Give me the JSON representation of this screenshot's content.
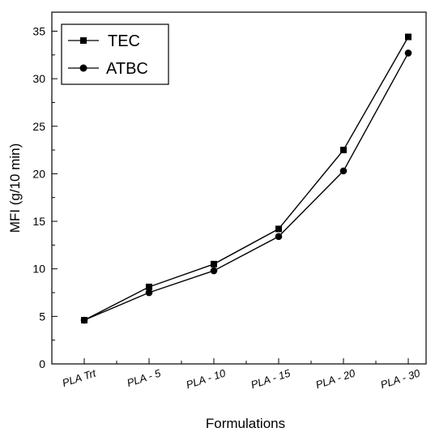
{
  "chart_data": {
    "type": "line",
    "title": "",
    "xlabel": "Formulations",
    "ylabel": "MFI (g/10 min)",
    "categories": [
      "PLA Trt",
      "PLA - 5",
      "PLA - 10",
      "PLA - 15",
      "PLA - 20",
      "PLA - 30"
    ],
    "ylim": [
      0,
      37
    ],
    "yticks": [
      0,
      5,
      10,
      15,
      20,
      25,
      30,
      35
    ],
    "ytick_labels": [
      "0",
      "5",
      "10",
      "15",
      "20",
      "25",
      "30",
      "35"
    ],
    "grid": false,
    "legend_position": "top-left",
    "series": [
      {
        "name": "TEC",
        "marker": "square",
        "values": [
          4.6,
          8.1,
          10.5,
          14.2,
          22.5,
          34.4
        ]
      },
      {
        "name": "ATBC",
        "marker": "circle",
        "values": [
          4.6,
          7.5,
          9.8,
          13.4,
          20.3,
          32.7
        ]
      }
    ],
    "colors": {
      "line": "#000000",
      "background": "#ffffff"
    }
  }
}
